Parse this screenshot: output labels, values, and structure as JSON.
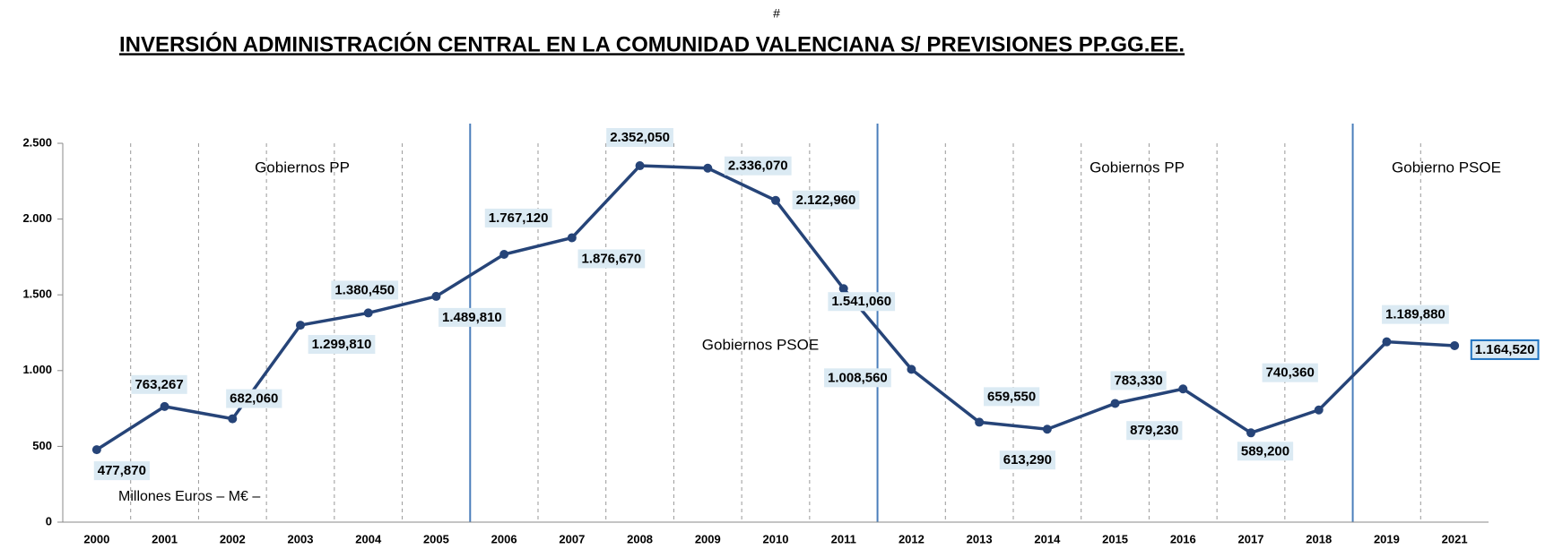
{
  "chart_data": {
    "type": "line",
    "header_mark": "#",
    "title": "INVERSIÓN ADMINISTRACIÓN CENTRAL EN LA COMUNIDAD VALENCIANA S/ PREVISIONES PP.GG.EE.",
    "y_unit_label": "Millones Euros – M€ –",
    "annotations": [
      "Gobiernos PP",
      "Gobiernos PSOE",
      "Gobiernos PP",
      "Gobierno PSOE"
    ],
    "categories": [
      "2000",
      "2001",
      "2002",
      "2003",
      "2004",
      "2005",
      "2006",
      "2007",
      "2008",
      "2009",
      "2010",
      "2011",
      "2012",
      "2013",
      "2014",
      "2015",
      "2016",
      "2017",
      "2018",
      "2019",
      "2021"
    ],
    "series": [
      {
        "name": "Inversión",
        "color": "#264478",
        "values": [
          477.87,
          763.267,
          682.06,
          1299.81,
          1380.45,
          1489.81,
          1767.12,
          1876.67,
          2352.05,
          2336.07,
          2122.96,
          1541.06,
          1008.56,
          659.55,
          613.29,
          783.33,
          879.23,
          589.2,
          740.36,
          1189.88,
          1164.52
        ],
        "value_labels": [
          "477,870",
          "763,267",
          "682,060",
          "1.299,810",
          "1.380,450",
          "1.489,810",
          "1.767,120",
          "1.876,670",
          "2.352,050",
          "2.336,070",
          "2.122,960",
          "1.541,060",
          "1.008,560",
          "659,550",
          "613,290",
          "783,330",
          "879,230",
          "589,200",
          "740,360",
          "1.189,880",
          "1.164,520"
        ]
      }
    ],
    "ylim": [
      0,
      2500
    ],
    "yticks": [
      0,
      500,
      {
        "value": 1000,
        "label": "1.000"
      },
      {
        "value": 1500,
        "label": "1.500"
      },
      {
        "value": 2000,
        "label": "2.000"
      },
      {
        "value": 2500,
        "label": "2.500"
      }
    ],
    "grid": true
  }
}
